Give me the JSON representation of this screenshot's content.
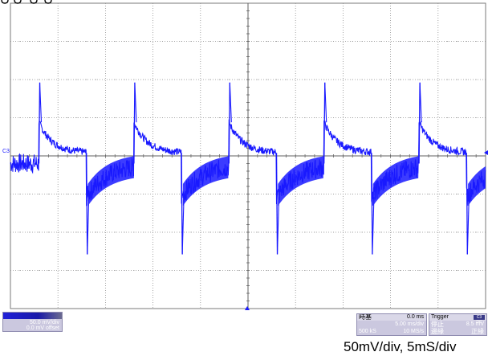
{
  "title": "",
  "screen": {
    "channel_label": "C3",
    "trigger_marker_color": "#1a1aff",
    "trace_color": "#1a1aff",
    "grid_color": "#909090",
    "grid_divisions": {
      "horizontal": 10,
      "vertical": 8
    },
    "vertical_scale_mv_per_div": 50,
    "time_scale_ms_per_div": 5
  },
  "channel_panel": {
    "scale": "50.0 mV/div",
    "offset": "0.0 mV offset"
  },
  "timebase_panel": {
    "title": "時基",
    "delay": "0.0 ms",
    "rate": "5.00 ms/div",
    "samples": "500 kS",
    "sample_rate": "10 MS/s"
  },
  "trigger_panel": {
    "title": "Trigger",
    "channel_badge": "C3 DC",
    "mode": "停止",
    "level": "8.5 mV",
    "type": "邊緣",
    "slope": "正緣"
  },
  "caption": "50mV/div, 5mS/div",
  "chart_data": {
    "type": "line",
    "title": "",
    "xlabel": "",
    "ylabel": "",
    "x_unit": "ms",
    "y_unit": "mV",
    "xlim": [
      -25,
      25
    ],
    "ylim": [
      -200,
      200
    ],
    "grid": true,
    "series": [
      {
        "name": "",
        "period_ms": 10,
        "positive_edge_times_ms": [
          -22,
          -12,
          -2,
          8,
          18
        ],
        "negative_edge_times_ms": [
          -17,
          -7,
          3,
          13,
          23
        ],
        "positive_spike_peak_mv": 96,
        "positive_shelf_start_mv": 44,
        "positive_plateau_end_mv": 4,
        "negative_spike_peak_mv": -129,
        "negative_shelf_start_mv": -54,
        "negative_plateau_end_mv": -10,
        "ripple_amplitude_mv": 8
      }
    ]
  }
}
